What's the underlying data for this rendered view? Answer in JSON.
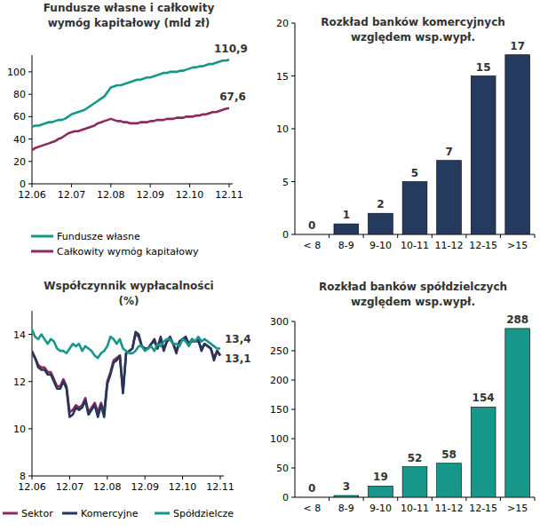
{
  "chart_data": [
    {
      "type": "line",
      "title": "Fundusze własne i całkowity\nwymóg kapitałowy (mld zł)",
      "categories": [
        "12.06",
        null,
        null,
        null,
        null,
        null,
        null,
        null,
        null,
        null,
        null,
        null,
        "12.07",
        null,
        null,
        null,
        null,
        null,
        null,
        null,
        null,
        null,
        null,
        null,
        "12.08",
        null,
        null,
        null,
        null,
        null,
        null,
        null,
        null,
        null,
        null,
        null,
        "12.09",
        null,
        null,
        null,
        null,
        null,
        null,
        null,
        null,
        null,
        null,
        null,
        "12.10",
        null,
        null,
        null,
        null,
        null,
        null,
        null,
        null,
        null,
        null,
        null,
        "12.11"
      ],
      "series": [
        {
          "name": "Fundusze własne",
          "color": "#17978a",
          "values": [
            51,
            52,
            52,
            53,
            54,
            55,
            55,
            56,
            57,
            57,
            58,
            60,
            62,
            63,
            64,
            65,
            66,
            68,
            70,
            72,
            74,
            76,
            78,
            82,
            86,
            87,
            88,
            88,
            89,
            90,
            91,
            92,
            93,
            93,
            94,
            95,
            95,
            96,
            97,
            98,
            99,
            99,
            100,
            100,
            100,
            101,
            101,
            102,
            103,
            104,
            104,
            105,
            105,
            106,
            107,
            107,
            108,
            109,
            110,
            110,
            110.9
          ],
          "value_labels": [
            null,
            null,
            null,
            null,
            null,
            null,
            null,
            null,
            null,
            null,
            null,
            null,
            null,
            null,
            null,
            null,
            null,
            null,
            null,
            null,
            null,
            null,
            null,
            null,
            null,
            null,
            null,
            null,
            null,
            null,
            null,
            null,
            null,
            null,
            null,
            null,
            null,
            null,
            null,
            null,
            null,
            null,
            null,
            null,
            null,
            null,
            null,
            null,
            null,
            null,
            null,
            null,
            null,
            null,
            null,
            null,
            null,
            null,
            null,
            null,
            "110,9"
          ]
        },
        {
          "name": "Całkowity wymóg kapitałowy",
          "color": "#8c2a5c",
          "values": [
            30,
            32,
            33,
            34,
            35,
            36,
            37,
            38,
            40,
            41,
            43,
            45,
            46,
            47,
            47,
            48,
            49,
            50,
            51,
            52,
            54,
            55,
            56,
            57,
            58,
            57,
            56,
            56,
            55,
            55,
            54,
            54,
            54,
            55,
            55,
            55,
            56,
            56,
            57,
            57,
            57,
            58,
            58,
            58,
            59,
            59,
            59,
            60,
            60,
            60,
            61,
            61,
            62,
            62,
            63,
            64,
            64,
            65,
            66,
            67,
            67.6
          ],
          "value_labels": [
            null,
            null,
            null,
            null,
            null,
            null,
            null,
            null,
            null,
            null,
            null,
            null,
            null,
            null,
            null,
            null,
            null,
            null,
            null,
            null,
            null,
            null,
            null,
            null,
            null,
            null,
            null,
            null,
            null,
            null,
            null,
            null,
            null,
            null,
            null,
            null,
            null,
            null,
            null,
            null,
            null,
            null,
            null,
            null,
            null,
            null,
            null,
            null,
            null,
            null,
            null,
            null,
            null,
            null,
            null,
            null,
            null,
            null,
            null,
            null,
            "67,6"
          ]
        }
      ],
      "ylim": [
        0,
        115
      ],
      "yticks": [
        0,
        20,
        40,
        60,
        80,
        100
      ],
      "grid": false,
      "legend": "bottom"
    },
    {
      "type": "bar",
      "title": "Rozkład banków komercyjnych\nwzględem wsp.wypł.",
      "categories": [
        "< 8",
        "8-9",
        "9-10",
        "10-11",
        "11-12",
        "12-15",
        ">15"
      ],
      "values": [
        0,
        1,
        2,
        5,
        7,
        15,
        17
      ],
      "color": "#243a5e",
      "ylim": [
        0,
        20
      ],
      "yticks": [
        0,
        5,
        10,
        15,
        20
      ],
      "grid": false,
      "data_labels": true
    },
    {
      "type": "line",
      "title": "Współczynnik wypłacalności\n(%)",
      "categories": [
        "12.06",
        null,
        null,
        null,
        null,
        null,
        null,
        null,
        null,
        null,
        null,
        null,
        "12.07",
        null,
        null,
        null,
        null,
        null,
        null,
        null,
        null,
        null,
        null,
        null,
        "12.08",
        null,
        null,
        null,
        null,
        null,
        null,
        null,
        null,
        null,
        null,
        null,
        "12.09",
        null,
        null,
        null,
        null,
        null,
        null,
        null,
        null,
        null,
        null,
        null,
        "12.10",
        null,
        null,
        null,
        null,
        null,
        null,
        null,
        null,
        null,
        null,
        null,
        "12.11"
      ],
      "series": [
        {
          "name": "Sektor",
          "color": "#8c2a5c",
          "values": [
            13.2,
            13.0,
            12.7,
            12.6,
            12.6,
            12.4,
            12.4,
            12.1,
            11.8,
            11.8,
            12.1,
            11.8,
            10.7,
            10.8,
            11.0,
            10.9,
            11.0,
            11.3,
            10.7,
            10.9,
            11.1,
            10.7,
            11.1,
            10.7,
            12.0,
            12.4,
            12.9,
            13.0,
            13.1,
            11.6,
            13.2,
            13.3,
            13.4,
            14.0,
            13.9,
            13.5,
            13.4,
            13.4,
            13.6,
            13.7,
            13.4,
            13.8,
            13.4,
            13.7,
            13.8,
            13.6,
            13.3,
            13.7,
            13.8,
            13.8,
            13.6,
            13.7,
            13.7,
            13.7,
            13.4,
            13.6,
            13.5,
            13.4,
            13.0,
            13.3,
            13.1
          ]
        },
        {
          "name": "Komercyjne",
          "color": "#23375a",
          "values": [
            13.3,
            13.0,
            12.6,
            12.5,
            12.5,
            12.3,
            12.3,
            12.0,
            11.7,
            11.7,
            12.0,
            11.7,
            10.5,
            10.6,
            10.9,
            10.8,
            10.9,
            11.2,
            10.6,
            10.8,
            11.0,
            10.5,
            11.0,
            10.5,
            11.9,
            12.3,
            12.8,
            12.9,
            13.1,
            11.5,
            13.2,
            13.3,
            13.4,
            14.1,
            14.0,
            13.5,
            13.4,
            13.4,
            13.6,
            13.8,
            13.4,
            13.9,
            13.3,
            13.7,
            13.9,
            13.6,
            13.2,
            13.7,
            13.8,
            13.9,
            13.6,
            13.8,
            13.7,
            13.8,
            13.3,
            13.6,
            13.5,
            13.4,
            12.9,
            13.3,
            13.1
          ],
          "value_labels": [
            null,
            null,
            null,
            null,
            null,
            null,
            null,
            null,
            null,
            null,
            null,
            null,
            null,
            null,
            null,
            null,
            null,
            null,
            null,
            null,
            null,
            null,
            null,
            null,
            null,
            null,
            null,
            null,
            null,
            null,
            null,
            null,
            null,
            null,
            null,
            null,
            null,
            null,
            null,
            null,
            null,
            null,
            null,
            null,
            null,
            null,
            null,
            null,
            null,
            null,
            null,
            null,
            null,
            null,
            null,
            null,
            null,
            null,
            null,
            null,
            "13,1"
          ]
        },
        {
          "name": "Spółdzielcze",
          "color": "#17978a",
          "values": [
            14.2,
            13.9,
            13.8,
            14.0,
            13.8,
            13.6,
            13.8,
            13.7,
            13.4,
            13.3,
            13.3,
            13.2,
            13.4,
            13.6,
            13.5,
            13.6,
            13.3,
            13.5,
            13.4,
            13.3,
            13.1,
            13.0,
            13.2,
            13.3,
            13.5,
            13.9,
            13.8,
            13.6,
            13.8,
            13.4,
            13.3,
            13.2,
            13.2,
            13.3,
            13.5,
            13.5,
            13.3,
            13.4,
            13.5,
            13.3,
            13.6,
            13.5,
            13.7,
            13.8,
            13.8,
            13.6,
            13.6,
            13.5,
            13.8,
            13.7,
            13.5,
            13.8,
            13.7,
            13.9,
            13.7,
            13.8,
            13.7,
            13.6,
            13.5,
            13.4,
            13.4
          ],
          "value_labels": [
            null,
            null,
            null,
            null,
            null,
            null,
            null,
            null,
            null,
            null,
            null,
            null,
            null,
            null,
            null,
            null,
            null,
            null,
            null,
            null,
            null,
            null,
            null,
            null,
            null,
            null,
            null,
            null,
            null,
            null,
            null,
            null,
            null,
            null,
            null,
            null,
            null,
            null,
            null,
            null,
            null,
            null,
            null,
            null,
            null,
            null,
            null,
            null,
            null,
            null,
            null,
            null,
            null,
            null,
            null,
            null,
            null,
            null,
            null,
            null,
            "13,4"
          ]
        }
      ],
      "ylim": [
        8,
        15
      ],
      "yticks": [
        8,
        10,
        12,
        14
      ],
      "grid": false,
      "legend": "bottom"
    },
    {
      "type": "bar",
      "title": "Rozkład banków spółdzielczych\nwzględem wsp.wypł.",
      "categories": [
        "< 8",
        "8-9",
        "9-10",
        "10-11",
        "11-12",
        "12-15",
        ">15"
      ],
      "values": [
        0,
        3,
        19,
        52,
        58,
        154,
        288
      ],
      "color": "#17978a",
      "ylim": [
        0,
        300
      ],
      "yticks": [
        0,
        50,
        100,
        150,
        200,
        250,
        300
      ],
      "grid": false,
      "data_labels": true
    }
  ]
}
